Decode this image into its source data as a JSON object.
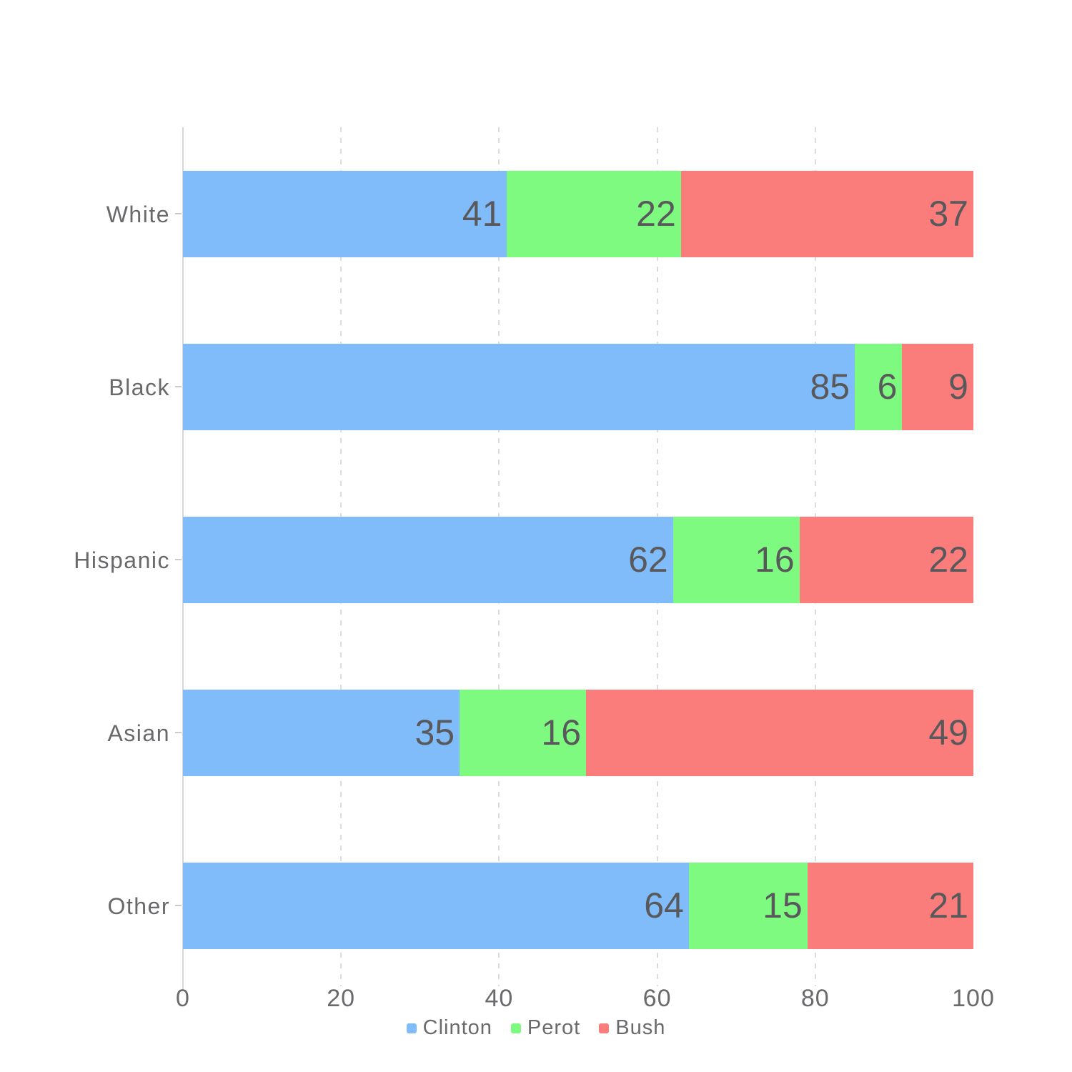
{
  "chart_data": {
    "type": "bar",
    "orientation": "horizontal",
    "stacked": true,
    "title": "",
    "xlabel": "",
    "ylabel": "",
    "categories": [
      "White",
      "Black",
      "Hispanic",
      "Asian",
      "Other"
    ],
    "series": [
      {
        "name": "Clinton",
        "color": "#80BCF9",
        "values": [
          41,
          85,
          62,
          35,
          64
        ]
      },
      {
        "name": "Perot",
        "color": "#7FFA80",
        "values": [
          22,
          6,
          16,
          16,
          15
        ]
      },
      {
        "name": "Bush",
        "color": "#FA7D7C",
        "values": [
          37,
          9,
          22,
          49,
          21
        ]
      }
    ],
    "xlim": [
      0,
      100
    ],
    "x_tick_labels": [
      "0",
      "20",
      "40",
      "60",
      "80",
      "100"
    ],
    "x_tick_values": [
      0,
      20,
      40,
      60,
      80,
      100
    ],
    "grid_tick_values": [
      20,
      40,
      60,
      80
    ],
    "grid": "dashed-vertical",
    "legend_position": "bottom",
    "value_labels": "inside-end"
  },
  "colors": {
    "background": "#FFFFFF",
    "axis_line": "#D6D6D6",
    "gridline": "#DCDCDC",
    "tick_text": "#6A6A6D",
    "category_text": "#69696C",
    "value_label_text": "#59595B"
  }
}
